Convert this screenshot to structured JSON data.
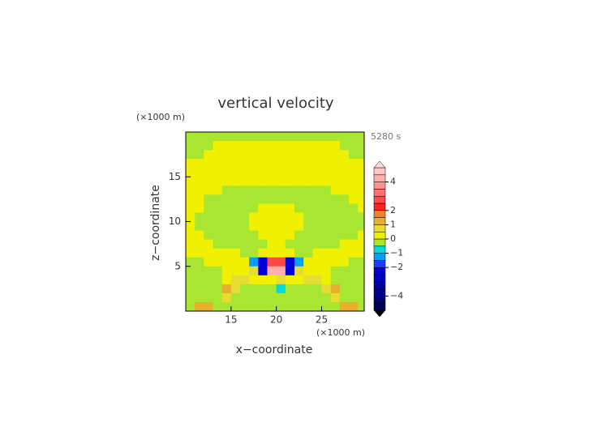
{
  "chart_data": {
    "type": "contour",
    "title": "vertical velocity",
    "x_label": "x−coordinate",
    "y_label": "z−coordinate",
    "x_unit": "(×1000 m)",
    "y_unit": "(×1000 m)",
    "time_label": "5280 s",
    "xlim": [
      10,
      29.7
    ],
    "ylim": [
      0,
      20
    ],
    "xticks": [
      15,
      20,
      25
    ],
    "yticks": [
      5,
      10,
      15
    ],
    "x": [
      10.5,
      11.5,
      12.5,
      13.5,
      14.5,
      15.5,
      16.5,
      17.5,
      18.5,
      19.5,
      20.5,
      21.5,
      22.5,
      23.5,
      24.5,
      25.5,
      26.5,
      27.5,
      28.5,
      29.5
    ],
    "z": [
      19.5,
      18.5,
      17.5,
      16.5,
      15.5,
      14.5,
      13.5,
      12.5,
      11.5,
      10.5,
      9.5,
      8.5,
      7.5,
      6.5,
      5.5,
      4.5,
      3.5,
      2.5,
      1.5,
      0.5
    ],
    "w": [
      [
        -0.2,
        -0.2,
        -0.2,
        -0.2,
        -0.2,
        -0.2,
        -0.2,
        -0.2,
        -0.2,
        -0.2,
        -0.2,
        -0.2,
        -0.2,
        -0.2,
        -0.2,
        -0.2,
        -0.2,
        -0.2,
        -0.2,
        -0.2
      ],
      [
        -0.2,
        -0.2,
        -0.2,
        0.2,
        0.2,
        0.2,
        0.2,
        0.2,
        0.2,
        0.2,
        0.2,
        0.2,
        0.2,
        0.2,
        0.2,
        0.2,
        0.2,
        -0.2,
        -0.2,
        -0.2
      ],
      [
        -0.2,
        -0.2,
        0.2,
        0.2,
        0.2,
        0.2,
        0.2,
        0.2,
        0.2,
        0.2,
        0.2,
        0.2,
        0.2,
        0.2,
        0.2,
        0.2,
        0.2,
        0.2,
        -0.2,
        -0.2
      ],
      [
        0.2,
        0.2,
        0.2,
        0.2,
        0.2,
        0.2,
        0.2,
        0.2,
        0.2,
        0.2,
        0.2,
        0.2,
        0.2,
        0.2,
        0.2,
        0.2,
        0.2,
        0.2,
        0.2,
        0.2
      ],
      [
        0.2,
        0.2,
        0.2,
        0.2,
        0.2,
        0.2,
        0.2,
        0.2,
        0.2,
        0.2,
        0.2,
        0.2,
        0.2,
        0.2,
        0.2,
        0.2,
        0.2,
        0.2,
        0.2,
        0.2
      ],
      [
        0.2,
        0.2,
        0.2,
        0.2,
        0.2,
        0.2,
        0.2,
        0.2,
        0.2,
        0.2,
        0.2,
        0.2,
        0.2,
        0.2,
        0.2,
        0.2,
        0.2,
        0.2,
        0.2,
        0.2
      ],
      [
        0.2,
        0.2,
        0.2,
        0.2,
        -0.2,
        -0.2,
        -0.2,
        -0.2,
        -0.2,
        -0.2,
        -0.2,
        -0.2,
        -0.2,
        -0.2,
        -0.2,
        -0.2,
        0.2,
        0.2,
        0.2,
        0.2
      ],
      [
        0.2,
        0.2,
        -0.2,
        -0.2,
        -0.2,
        -0.2,
        -0.2,
        -0.2,
        -0.2,
        -0.2,
        -0.2,
        -0.2,
        -0.2,
        -0.2,
        -0.2,
        -0.2,
        -0.2,
        -0.2,
        0.2,
        0.2
      ],
      [
        0.2,
        0.2,
        -0.2,
        -0.2,
        -0.2,
        -0.2,
        -0.2,
        -0.2,
        0.2,
        0.2,
        0.2,
        0.2,
        -0.2,
        -0.2,
        -0.2,
        -0.2,
        -0.2,
        -0.2,
        -0.2,
        0.2
      ],
      [
        0.2,
        -0.2,
        -0.2,
        -0.2,
        -0.2,
        -0.2,
        -0.2,
        0.2,
        0.2,
        0.2,
        0.2,
        0.2,
        0.2,
        -0.2,
        -0.2,
        -0.2,
        -0.2,
        -0.2,
        -0.2,
        -0.2
      ],
      [
        0.2,
        -0.2,
        -0.2,
        -0.2,
        -0.2,
        -0.2,
        -0.2,
        0.2,
        0.2,
        0.2,
        0.2,
        0.2,
        0.2,
        -0.2,
        -0.2,
        -0.2,
        -0.2,
        -0.2,
        -0.2,
        -0.2
      ],
      [
        0.2,
        0.2,
        -0.2,
        -0.2,
        -0.2,
        -0.2,
        -0.2,
        -0.2,
        0.2,
        0.2,
        0.2,
        0.2,
        -0.2,
        -0.2,
        -0.2,
        -0.2,
        -0.2,
        -0.2,
        -0.2,
        0.2
      ],
      [
        0.2,
        0.2,
        0.2,
        -0.2,
        -0.2,
        -0.2,
        -0.2,
        -0.2,
        -0.2,
        0.2,
        0.2,
        -0.2,
        -0.2,
        -0.2,
        -0.2,
        -0.2,
        -0.2,
        0.2,
        0.2,
        0.2
      ],
      [
        0.2,
        0.2,
        0.2,
        0.2,
        0.2,
        0.2,
        -0.2,
        -0.2,
        0.2,
        0.2,
        0.2,
        0.2,
        -0.2,
        -0.2,
        0.2,
        0.2,
        0.2,
        0.2,
        0.2,
        0.2
      ],
      [
        -0.2,
        -0.2,
        0.2,
        0.2,
        0.2,
        0.2,
        0.2,
        -1.2,
        -2.2,
        2.7,
        2.7,
        -2.2,
        -1.2,
        0.2,
        0.2,
        0.2,
        0.2,
        0.2,
        -0.2,
        -0.2
      ],
      [
        -0.2,
        -0.2,
        -0.2,
        -0.2,
        0.2,
        0.2,
        0.2,
        0.7,
        -2.2,
        4.2,
        4.2,
        -2.2,
        0.7,
        0.2,
        0.2,
        0.2,
        -0.2,
        -0.2,
        -0.2,
        -0.2
      ],
      [
        -0.2,
        -0.2,
        -0.2,
        -0.2,
        0.2,
        0.7,
        0.7,
        0.2,
        0.2,
        0.2,
        0.7,
        0.2,
        0.2,
        0.7,
        0.7,
        0.2,
        -0.2,
        -0.2,
        -0.2,
        -0.2
      ],
      [
        -0.2,
        -0.2,
        -0.2,
        -0.2,
        1.2,
        0.7,
        -0.2,
        -0.2,
        -0.2,
        -0.2,
        -0.7,
        -0.2,
        -0.2,
        -0.2,
        -0.2,
        0.7,
        1.2,
        -0.2,
        -0.2,
        -0.2
      ],
      [
        -0.2,
        -0.2,
        -0.2,
        -0.2,
        0.7,
        -0.2,
        -0.2,
        -0.2,
        -0.2,
        -0.2,
        -0.2,
        -0.2,
        -0.2,
        -0.2,
        -0.2,
        -0.2,
        0.7,
        -0.2,
        -0.2,
        -0.2
      ],
      [
        -0.2,
        1.2,
        1.2,
        -0.2,
        -0.2,
        -0.2,
        -0.2,
        -0.2,
        -0.2,
        -0.2,
        -0.2,
        -0.2,
        -0.2,
        -0.2,
        -0.2,
        -0.2,
        -0.2,
        1.2,
        1.2,
        -0.2
      ]
    ],
    "colorbar": {
      "levels": [
        -5,
        -4.5,
        -4,
        -3.5,
        -3,
        -2.5,
        -2,
        -1.5,
        -1,
        -0.5,
        0,
        0.5,
        1,
        1.5,
        2,
        2.5,
        3,
        3.5,
        4,
        4.5,
        5
      ],
      "colors": [
        "#00005a",
        "#000073",
        "#00008c",
        "#0000a5",
        "#0000be",
        "#0000d7",
        "#1e3cff",
        "#00a0ff",
        "#00dcdc",
        "#a8e632",
        "#f0f000",
        "#e6dc32",
        "#e6af2d",
        "#f08228",
        "#ff2020",
        "#ff4848",
        "#ff7070",
        "#ff9090",
        "#ffafaf",
        "#ffc8c8"
      ],
      "under_color": "#000000",
      "over_color": "#ffd8d8",
      "ticks": [
        4,
        2,
        1,
        0,
        {
          "value": -1,
          "label": "−1"
        },
        {
          "value": -2,
          "label": "−2"
        },
        {
          "value": -4,
          "label": "−4"
        }
      ]
    }
  }
}
